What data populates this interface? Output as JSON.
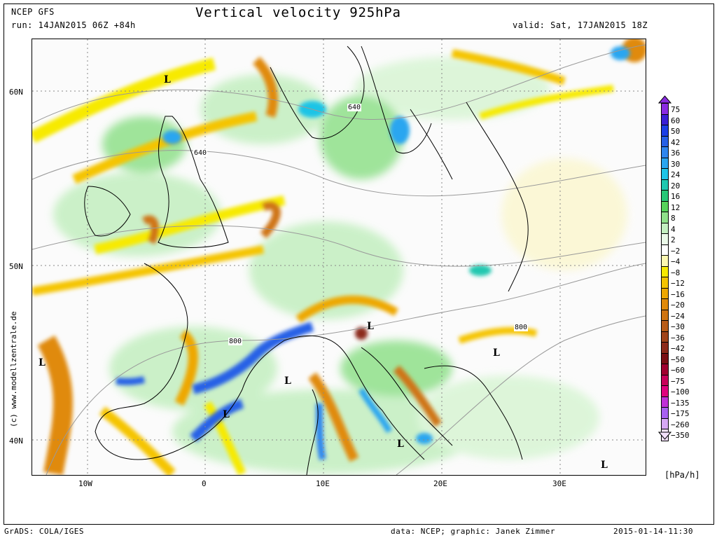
{
  "header": {
    "model": "NCEP GFS",
    "run": "run: 14JAN2015 06Z +84h",
    "title": "Vertical velocity 925hPa",
    "valid": "valid: Sat, 17JAN2015 18Z"
  },
  "axes": {
    "lat_labels": [
      "60N",
      "50N",
      "40N"
    ],
    "lon_labels": [
      "10W",
      "0",
      "10E",
      "20E",
      "30E"
    ]
  },
  "colorbar": {
    "unit": "[hPa/h]",
    "entries": [
      {
        "label": "75",
        "color": "#8a2be2"
      },
      {
        "label": "60",
        "color": "#3a1fd6"
      },
      {
        "label": "50",
        "color": "#1c3fe6"
      },
      {
        "label": "42",
        "color": "#2660e6"
      },
      {
        "label": "36",
        "color": "#2f86ee"
      },
      {
        "label": "30",
        "color": "#2aa6f0"
      },
      {
        "label": "24",
        "color": "#1ec4e6"
      },
      {
        "label": "20",
        "color": "#20c8b0"
      },
      {
        "label": "16",
        "color": "#27c777"
      },
      {
        "label": "12",
        "color": "#55d25a"
      },
      {
        "label": "8",
        "color": "#8fe08a"
      },
      {
        "label": "4",
        "color": "#c3efc0"
      },
      {
        "label": "2",
        "color": "#eaf9e8"
      },
      {
        "label": "−2",
        "color": "#ffffff"
      },
      {
        "label": "−4",
        "color": "#fbf7b0"
      },
      {
        "label": "−8",
        "color": "#f7ea00"
      },
      {
        "label": "−12",
        "color": "#f5c400"
      },
      {
        "label": "−16",
        "color": "#eea700"
      },
      {
        "label": "−20",
        "color": "#e08a0a"
      },
      {
        "label": "−24",
        "color": "#cf7412"
      },
      {
        "label": "−30",
        "color": "#b85c18"
      },
      {
        "label": "−36",
        "color": "#a0441a"
      },
      {
        "label": "−42",
        "color": "#8c2a1a"
      },
      {
        "label": "−50",
        "color": "#7a0f14"
      },
      {
        "label": "−60",
        "color": "#a00030"
      },
      {
        "label": "−75",
        "color": "#c8005a"
      },
      {
        "label": "−100",
        "color": "#e0007e"
      },
      {
        "label": "−135",
        "color": "#c030d8"
      },
      {
        "label": "−175",
        "color": "#a860f0"
      },
      {
        "label": "−260",
        "color": "#d6a8f4"
      },
      {
        "label": "−350",
        "color": "#f4e0fb"
      }
    ]
  },
  "map": {
    "contour_labels": [
      "640",
      "640",
      "800",
      "800"
    ],
    "pressure_markers": [
      "L",
      "L",
      "L",
      "L",
      "L",
      "L",
      "L"
    ]
  },
  "side_credit": "(c) www.modellzentrale.de",
  "footer": {
    "left": "GrADS: COLA/IGES",
    "center": "data: NCEP; graphic: Janek Zimmer",
    "right": "2015-01-14-11:30"
  }
}
